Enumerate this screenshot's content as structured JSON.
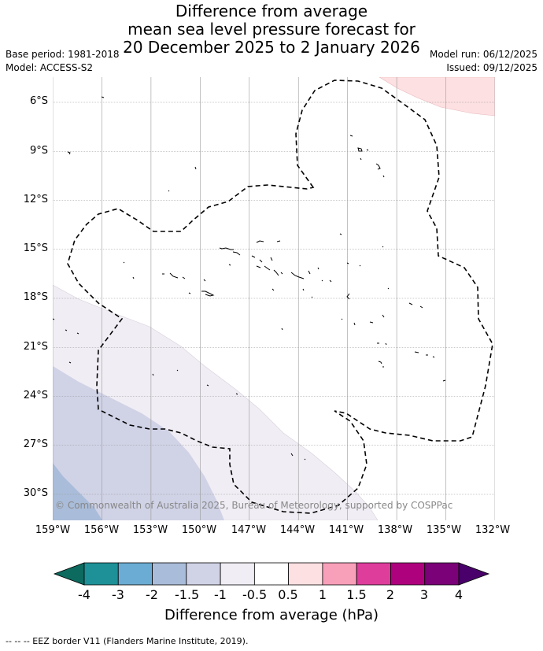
{
  "title": {
    "line1": "Difference from average",
    "line2": "mean sea level pressure forecast for",
    "line3": "20 December 2025 to 2 January 2026"
  },
  "meta": {
    "base_period": "Base period: 1981-2018",
    "model": "Model: ACCESS-S2",
    "model_run": "Model run: 06/12/2025",
    "issued": "Issued: 09/12/2025"
  },
  "map": {
    "latitude_labels": [
      "6°S",
      "9°S",
      "12°S",
      "15°S",
      "18°S",
      "21°S",
      "24°S",
      "27°S",
      "30°S"
    ],
    "longitude_labels": [
      "159°W",
      "156°W",
      "153°W",
      "150°W",
      "147°W",
      "144°W",
      "141°W",
      "138°W",
      "135°W",
      "132°W"
    ],
    "copyright": "© Commonwealth of Australia 2025, Bureau of Meteorology, supported by COSPPac",
    "colors": {
      "positive_0_5_1": "#fde0e2",
      "negative_0_5_1": "#f1edf4",
      "negative_1_1_5": "#d0d2e6",
      "negative_1_5_2": "#a9bcd9",
      "grid": "#9a9a9a",
      "border": "#000000"
    }
  },
  "colorbar": {
    "labels": [
      "-4",
      "-3",
      "-2",
      "-1.5",
      "-1",
      "-0.5",
      "0.5",
      "1",
      "1.5",
      "2",
      "3",
      "4"
    ],
    "colors": [
      "#0c6a5f",
      "#1d9197",
      "#6aacd3",
      "#a9bcd9",
      "#d0d2e6",
      "#f1edf4",
      "#ffffff",
      "#fde0e2",
      "#f89fba",
      "#de3d9c",
      "#ae017e",
      "#7a0177",
      "#49006a"
    ],
    "title": "Difference from average (hPa)"
  },
  "footnote": "--  --  -- EEZ border V11 (Flanders Marine Institute, 2019)."
}
